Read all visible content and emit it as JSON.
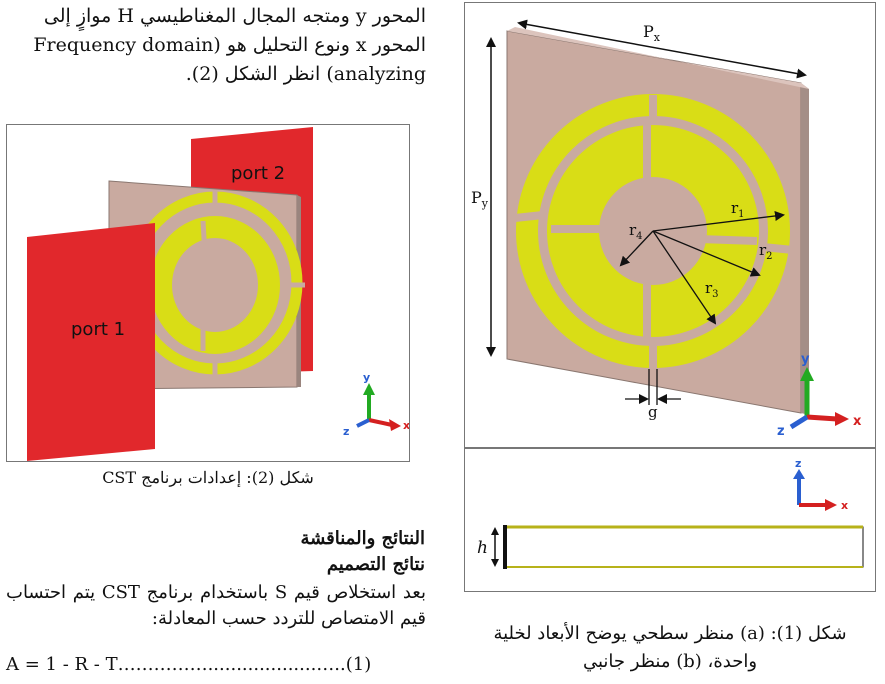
{
  "intro": {
    "line1": "المحور y ومتجه المجال المغناطيسي H موازٍ إلى",
    "line2": "المحور x ونوع التحليل هو (Frequency domain",
    "line3": "analyzing) انظر الشكل (2)."
  },
  "figure2": {
    "port1_label": "port 1",
    "port2_label": "port 2",
    "axis_x": "x",
    "axis_y": "y",
    "axis_z": "z",
    "caption": "شكل (2): إعدادات برنامج CST"
  },
  "results": {
    "heading": "النتائج والمناقشة",
    "subheading": "نتائج التصميم",
    "body": "بعد استخلاص قيم S باستخدام برنامج CST يتم احتساب قيم الامتصاص للتردد حسب المعادلة:",
    "equation": "A = 1 -  R - T……………...................…..(1)"
  },
  "figure1": {
    "px": "P",
    "px_sub": "x",
    "py": "P",
    "py_sub": "y",
    "r1": "r",
    "r1_sub": "1",
    "r2": "r",
    "r2_sub": "2",
    "r3": "r",
    "r3_sub": "3",
    "r4": "r",
    "r4_sub": "4",
    "g": "g",
    "h": "h",
    "axis_x": "x",
    "axis_y": "y",
    "axis_z": "z",
    "caption_line1": "شكل (1): (a) منظر سطحي يوضح الأبعاد لخلية",
    "caption_line2": "واحدة، (b) منظر جانبي"
  },
  "colors": {
    "port": "#e1282c",
    "substrate": "#c9aaa0",
    "metal": "#d9dd16",
    "axis_x": "#d42020",
    "axis_y": "#22aa22",
    "axis_z": "#2a5fd0"
  }
}
